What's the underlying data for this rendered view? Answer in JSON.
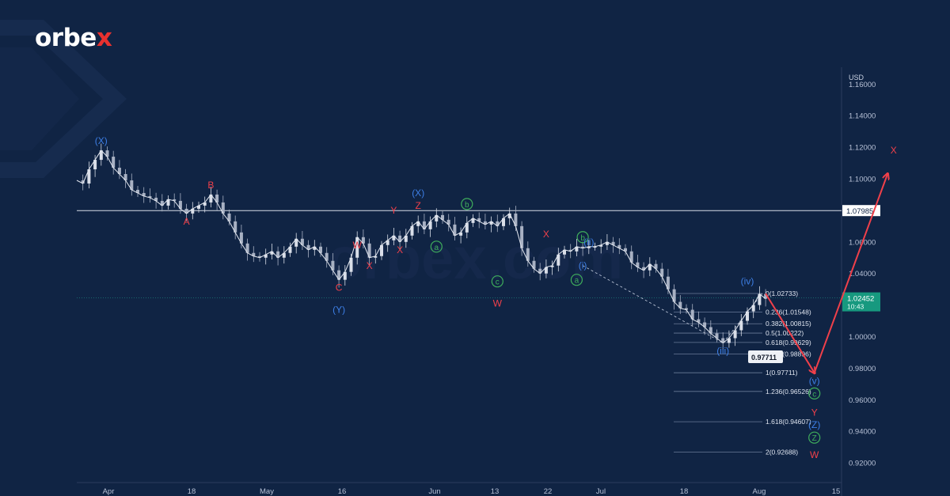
{
  "logo": {
    "text_main": "orbe",
    "text_accent": "x",
    "accent_color": "#e8312f"
  },
  "watermark": "orbex.com",
  "chart_data": {
    "type": "candlestick",
    "currency_label": "USD",
    "ylim": [
      0.912,
      1.162
    ],
    "yticks": [
      "1.16000",
      "1.14000",
      "1.12000",
      "1.10000",
      "1.08000",
      "1.06000",
      "1.04000",
      "1.02000",
      "1.00000",
      "0.98000",
      "0.96000",
      "0.94000",
      "0.92000"
    ],
    "x_ticks": [
      "Apr",
      "18",
      "May",
      "16",
      "Jun",
      "13",
      "22",
      "Jul",
      "18",
      "Aug",
      "15"
    ],
    "horizontal_level": {
      "value": 1.07985,
      "label": "1.07985"
    },
    "current_price": {
      "value": 1.02452,
      "label": "1.02452",
      "time": "10:43"
    },
    "projection_marker": {
      "value": 0.97711,
      "label": "0.97711"
    },
    "price_path": [
      [
        0,
        1.099
      ],
      [
        1,
        1.097
      ],
      [
        2,
        1.106
      ],
      [
        3,
        1.112
      ],
      [
        4,
        1.118
      ],
      [
        5,
        1.114
      ],
      [
        6,
        1.107
      ],
      [
        7,
        1.103
      ],
      [
        8,
        1.099
      ],
      [
        9,
        1.093
      ],
      [
        10,
        1.091
      ],
      [
        11,
        1.089
      ],
      [
        12,
        1.088
      ],
      [
        13,
        1.086
      ],
      [
        14,
        1.083
      ],
      [
        15,
        1.087
      ],
      [
        16,
        1.086
      ],
      [
        17,
        1.081
      ],
      [
        18,
        1.078
      ],
      [
        19,
        1.081
      ],
      [
        20,
        1.083
      ],
      [
        21,
        1.085
      ],
      [
        22,
        1.09
      ],
      [
        23,
        1.085
      ],
      [
        24,
        1.078
      ],
      [
        25,
        1.073
      ],
      [
        26,
        1.066
      ],
      [
        27,
        1.059
      ],
      [
        28,
        1.053
      ],
      [
        29,
        1.051
      ],
      [
        30,
        1.05
      ],
      [
        31,
        1.052
      ],
      [
        32,
        1.054
      ],
      [
        33,
        1.05
      ],
      [
        34,
        1.053
      ],
      [
        35,
        1.057
      ],
      [
        36,
        1.062
      ],
      [
        37,
        1.058
      ],
      [
        38,
        1.055
      ],
      [
        39,
        1.057
      ],
      [
        40,
        1.053
      ],
      [
        41,
        1.048
      ],
      [
        42,
        1.042
      ],
      [
        43,
        1.036
      ],
      [
        44,
        1.041
      ],
      [
        45,
        1.05
      ],
      [
        46,
        1.063
      ],
      [
        47,
        1.059
      ],
      [
        48,
        1.05
      ],
      [
        49,
        1.051
      ],
      [
        50,
        1.058
      ],
      [
        51,
        1.061
      ],
      [
        52,
        1.064
      ],
      [
        53,
        1.06
      ],
      [
        54,
        1.064
      ],
      [
        55,
        1.07
      ],
      [
        56,
        1.073
      ],
      [
        57,
        1.068
      ],
      [
        58,
        1.073
      ],
      [
        59,
        1.077
      ],
      [
        60,
        1.074
      ],
      [
        61,
        1.071
      ],
      [
        62,
        1.064
      ],
      [
        63,
        1.066
      ],
      [
        64,
        1.072
      ],
      [
        65,
        1.075
      ],
      [
        66,
        1.073
      ],
      [
        67,
        1.071
      ],
      [
        68,
        1.073
      ],
      [
        69,
        1.07
      ],
      [
        70,
        1.075
      ],
      [
        71,
        1.078
      ],
      [
        72,
        1.07
      ],
      [
        73,
        1.056
      ],
      [
        74,
        1.048
      ],
      [
        75,
        1.043
      ],
      [
        76,
        1.04
      ],
      [
        77,
        1.044
      ],
      [
        78,
        1.045
      ],
      [
        79,
        1.052
      ],
      [
        80,
        1.055
      ],
      [
        81,
        1.054
      ],
      [
        82,
        1.057
      ],
      [
        83,
        1.056
      ],
      [
        84,
        1.057
      ],
      [
        85,
        1.057
      ],
      [
        86,
        1.058
      ],
      [
        87,
        1.06
      ],
      [
        88,
        1.058
      ],
      [
        89,
        1.056
      ],
      [
        90,
        1.054
      ],
      [
        91,
        1.047
      ],
      [
        92,
        1.044
      ],
      [
        93,
        1.042
      ],
      [
        94,
        1.046
      ],
      [
        95,
        1.043
      ],
      [
        96,
        1.038
      ],
      [
        97,
        1.03
      ],
      [
        98,
        1.022
      ],
      [
        99,
        1.018
      ],
      [
        100,
        1.017
      ],
      [
        101,
        1.011
      ],
      [
        102,
        1.009
      ],
      [
        103,
        1.006
      ],
      [
        104,
        1.002
      ],
      [
        105,
        0.999
      ],
      [
        106,
        0.996
      ],
      [
        107,
        0.999
      ],
      [
        108,
        1.004
      ],
      [
        109,
        1.01
      ],
      [
        110,
        1.016
      ],
      [
        111,
        1.02
      ],
      [
        112,
        1.027
      ],
      [
        113,
        1.024
      ]
    ],
    "projection_arrows": [
      {
        "from": [
          113,
          1.0273
        ],
        "to": [
          121,
          0.9771
        ]
      },
      {
        "from": [
          121,
          0.9771
        ],
        "to": [
          133,
          1.103
        ]
      }
    ],
    "fib_levels": [
      {
        "label": "0(1.02733)",
        "value": 1.02733
      },
      {
        "label": "0.236(1.01548)",
        "value": 1.01548
      },
      {
        "label": "0.382(1.00815)",
        "value": 1.00815
      },
      {
        "label": "0.5(1.00222)",
        "value": 1.00222
      },
      {
        "label": "0.618(0.99629)",
        "value": 0.99629
      },
      {
        "label": "0.786(0.98896)",
        "value": 0.98896
      },
      {
        "label": "1(0.97711)",
        "value": 0.97711
      },
      {
        "label": "1.236(0.96526)",
        "value": 0.96526
      },
      {
        "label": "1.618(0.94607)",
        "value": 0.94607
      },
      {
        "label": "2(0.92688)",
        "value": 0.92688
      }
    ],
    "wave_labels": [
      {
        "text": "(X)",
        "color": "blue",
        "x": 4,
        "y": 1.118,
        "pos": "above"
      },
      {
        "text": "B",
        "color": "red",
        "x": 22,
        "y": 1.09,
        "pos": "above"
      },
      {
        "text": "A",
        "color": "red",
        "x": 18,
        "y": 1.078,
        "pos": "below"
      },
      {
        "text": "C",
        "color": "red",
        "x": 43,
        "y": 1.036,
        "pos": "below"
      },
      {
        "text": "(Y)",
        "color": "blue",
        "x": 43,
        "y": 1.03,
        "pos": "below",
        "gap": 16
      },
      {
        "text": "W",
        "color": "red",
        "x": 46,
        "y": 1.063,
        "pos": "below"
      },
      {
        "text": "X",
        "color": "red",
        "x": 48,
        "y": 1.05,
        "pos": "below"
      },
      {
        "text": "Y",
        "color": "red",
        "x": 52,
        "y": 1.074,
        "pos": "above"
      },
      {
        "text": "X",
        "color": "red",
        "x": 53,
        "y": 1.06,
        "pos": "below"
      },
      {
        "text": "Z",
        "color": "red",
        "x": 56,
        "y": 1.077,
        "pos": "above"
      },
      {
        "text": "(X)",
        "color": "blue",
        "x": 56,
        "y": 1.077,
        "pos": "above",
        "gap": 16
      },
      {
        "text": "a",
        "color": "green",
        "x": 59,
        "y": 1.062,
        "pos": "below",
        "circle": true
      },
      {
        "text": "b",
        "color": "green",
        "x": 64,
        "y": 1.078,
        "pos": "above",
        "circle": true
      },
      {
        "text": "c",
        "color": "green",
        "x": 69,
        "y": 1.04,
        "pos": "below",
        "circle": true
      },
      {
        "text": "W",
        "color": "red",
        "x": 69,
        "y": 1.034,
        "pos": "below",
        "gap": 16
      },
      {
        "text": "X",
        "color": "red",
        "x": 77,
        "y": 1.059,
        "pos": "above"
      },
      {
        "text": "b",
        "color": "green",
        "x": 83,
        "y": 1.057,
        "pos": "above",
        "circle": true
      },
      {
        "text": "(ii)",
        "color": "blue",
        "x": 84,
        "y": 1.054,
        "pos": "above"
      },
      {
        "text": "(i)",
        "color": "blue",
        "x": 83,
        "y": 1.039,
        "pos": "above"
      },
      {
        "text": "a",
        "color": "green",
        "x": 82,
        "y": 1.041,
        "pos": "below",
        "circle": true
      },
      {
        "text": "(iii)",
        "color": "blue",
        "x": 106,
        "y": 0.996,
        "pos": "below"
      },
      {
        "text": "(iv)",
        "color": "blue",
        "x": 110,
        "y": 1.029,
        "pos": "above"
      },
      {
        "text": "(v)",
        "color": "blue",
        "x": 121,
        "y": 0.977,
        "pos": "below"
      },
      {
        "text": "c",
        "color": "green",
        "x": 121,
        "y": 0.969,
        "pos": "below",
        "circle": true
      },
      {
        "text": "Y",
        "color": "red",
        "x": 121,
        "y": 0.957,
        "pos": "below"
      },
      {
        "text": "(Z)",
        "color": "blue",
        "x": 121,
        "y": 0.949,
        "pos": "below"
      },
      {
        "text": "Z",
        "color": "green",
        "x": 121,
        "y": 0.941,
        "pos": "below",
        "circle": true
      },
      {
        "text": "W",
        "color": "red",
        "x": 121,
        "y": 0.93,
        "pos": "below"
      },
      {
        "text": "X",
        "color": "red",
        "x": 134,
        "y": 1.112,
        "pos": "above"
      }
    ]
  }
}
